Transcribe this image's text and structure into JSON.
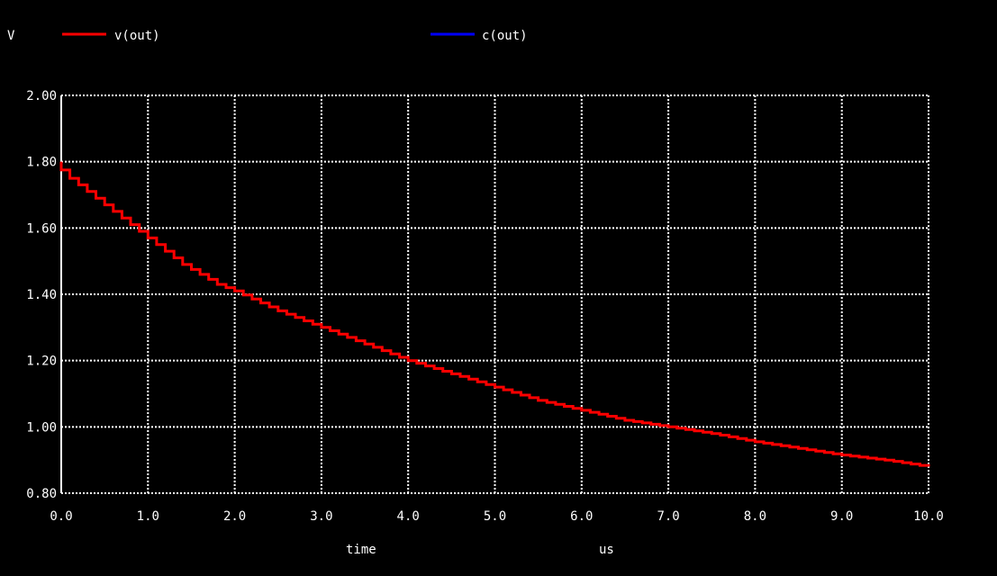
{
  "chart_data": {
    "type": "line",
    "ylabel": "V",
    "xlabel": "time",
    "xunit": "us",
    "xlim": [
      0.0,
      10.0
    ],
    "ylim": [
      0.8,
      2.0
    ],
    "x_ticks": [
      "0.0",
      "1.0",
      "2.0",
      "3.0",
      "4.0",
      "5.0",
      "6.0",
      "7.0",
      "8.0",
      "9.0",
      "10.0"
    ],
    "y_ticks": [
      "2.00",
      "1.80",
      "1.60",
      "1.40",
      "1.20",
      "1.00",
      "0.80"
    ],
    "grid": true,
    "legend_position": "top",
    "background_color": "#000000",
    "series": [
      {
        "name": "v(out)",
        "color": "#ff0000",
        "x": [
          0.0,
          0.1,
          0.3,
          0.5,
          0.7,
          0.9,
          1.0,
          1.2,
          1.4,
          1.6,
          1.8,
          2.0,
          2.5,
          3.0,
          3.5,
          4.0,
          4.5,
          5.0,
          5.5,
          6.0,
          6.5,
          7.0,
          7.5,
          8.0,
          8.5,
          9.0,
          9.5,
          10.0
        ],
        "y": [
          1.8,
          1.75,
          1.71,
          1.67,
          1.63,
          1.59,
          1.57,
          1.53,
          1.49,
          1.46,
          1.43,
          1.41,
          1.35,
          1.3,
          1.25,
          1.2,
          1.16,
          1.12,
          1.08,
          1.05,
          1.02,
          1.0,
          0.98,
          0.955,
          0.935,
          0.915,
          0.9,
          0.88
        ]
      },
      {
        "name": "c(out)",
        "color": "#0000ff",
        "x": [],
        "y": []
      }
    ]
  }
}
